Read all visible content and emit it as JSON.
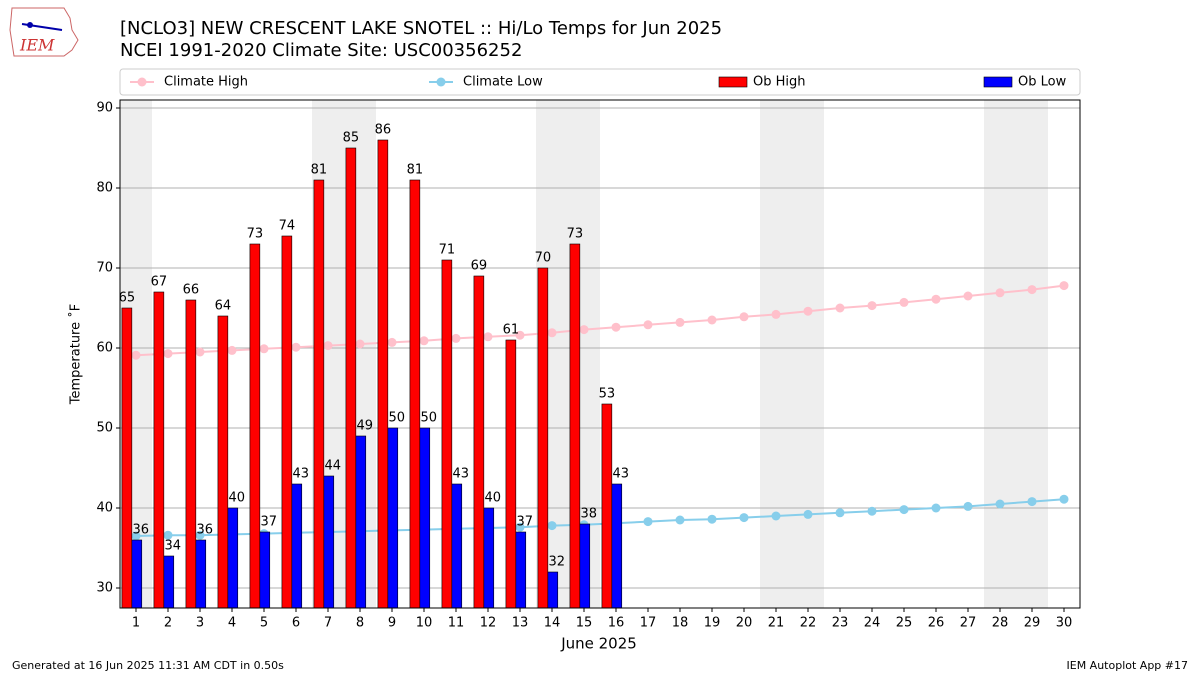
{
  "chart_data": {
    "type": "bar",
    "title": "[NCLO3] NEW CRESCENT LAKE SNOTEL :: Hi/Lo Temps for Jun 2025",
    "subtitle": "NCEI 1991-2020 Climate Site: USC00356252",
    "x_label": "June 2025",
    "y_label": "Temperature ˚F",
    "x": [
      1,
      2,
      3,
      4,
      5,
      6,
      7,
      8,
      9,
      10,
      11,
      12,
      13,
      14,
      15,
      16,
      17,
      18,
      19,
      20,
      21,
      22,
      23,
      24,
      25,
      26,
      27,
      28,
      29,
      30
    ],
    "xlim": [
      0.5,
      30.5
    ],
    "xticks": [
      1,
      2,
      3,
      4,
      5,
      6,
      7,
      8,
      9,
      10,
      11,
      12,
      13,
      14,
      15,
      16,
      17,
      18,
      19,
      20,
      21,
      22,
      23,
      24,
      25,
      26,
      27,
      28,
      29,
      30
    ],
    "ylim": [
      27.5,
      91
    ],
    "yticks": [
      30,
      40,
      50,
      60,
      70,
      80,
      90
    ],
    "grid": true,
    "series": [
      {
        "name": "Climate High",
        "type": "line",
        "color": "#ffc0cb",
        "values": [
          59.1,
          59.3,
          59.5,
          59.7,
          59.9,
          60.1,
          60.3,
          60.5,
          60.7,
          60.9,
          61.2,
          61.4,
          61.6,
          61.9,
          62.3,
          62.6,
          62.9,
          63.2,
          63.5,
          63.9,
          64.2,
          64.6,
          65.0,
          65.3,
          65.7,
          66.1,
          66.5,
          66.9,
          67.3,
          67.8
        ]
      },
      {
        "name": "Climate Low",
        "type": "line",
        "color": "#87ceeb",
        "values": [
          36.5,
          36.6,
          36.6,
          36.7,
          36.8,
          36.9,
          37.0,
          37.1,
          37.2,
          37.3,
          37.4,
          37.5,
          37.6,
          37.8,
          37.9,
          38.1,
          38.3,
          38.5,
          38.6,
          38.8,
          39.0,
          39.2,
          39.4,
          39.6,
          39.8,
          40.0,
          40.2,
          40.5,
          40.8,
          41.1
        ]
      },
      {
        "name": "Ob High",
        "type": "bar",
        "color": "#ff0000",
        "values": [
          65,
          67,
          66,
          64,
          73,
          74,
          81,
          85,
          86,
          81,
          71,
          69,
          61,
          70,
          73,
          53,
          null,
          null,
          null,
          null,
          null,
          null,
          null,
          null,
          null,
          null,
          null,
          null,
          null,
          null
        ]
      },
      {
        "name": "Ob Low",
        "type": "bar",
        "color": "#0000ff",
        "values": [
          36,
          34,
          36,
          40,
          37,
          43,
          44,
          49,
          50,
          50,
          43,
          40,
          37,
          32,
          38,
          43,
          null,
          null,
          null,
          null,
          null,
          null,
          null,
          null,
          null,
          null,
          null,
          null,
          null,
          null
        ]
      }
    ],
    "logo_text": "IEM",
    "footer_left": "Generated at 16 Jun 2025 11:31 AM CDT in 0.50s",
    "footer_right": "IEM Autoplot App #17"
  }
}
